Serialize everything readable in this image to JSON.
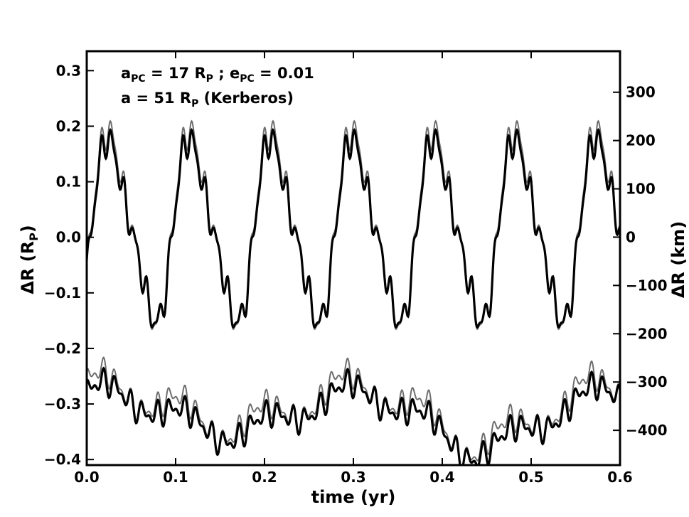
{
  "chart_data": {
    "type": "line",
    "xlabel": "time (yr)",
    "ylabel_left": "ΔR (R",
    "ylabel_left_sub": "P",
    "ylabel_right": "ΔR (km)",
    "xlim": [
      0.0,
      0.6
    ],
    "ylim_left": [
      -0.41,
      0.335
    ],
    "ylim_right": [
      -472,
      385
    ],
    "x_ticks": [
      0.0,
      0.1,
      0.2,
      0.3,
      0.4,
      0.5,
      0.6
    ],
    "x_tick_labels": [
      "0.0",
      "0.1",
      "0.2",
      "0.3",
      "0.4",
      "0.5",
      "0.6"
    ],
    "y_left_ticks": [
      0.3,
      0.2,
      0.1,
      0.0,
      -0.1,
      -0.2,
      -0.3,
      -0.4
    ],
    "y_left_tick_labels": [
      "0.3",
      "0.2",
      "0.1",
      "0.0",
      "−0.1",
      "−0.2",
      "−0.3",
      "−0.4"
    ],
    "y_right_ticks": [
      300,
      200,
      100,
      0,
      -100,
      -200,
      -300,
      -400
    ],
    "y_right_tick_labels": [
      "300",
      "200",
      "100",
      "0",
      "−100",
      "−200",
      "−300",
      "−400"
    ],
    "annotation_line1": {
      "a": "a",
      "a_sub": "PC",
      "a_rest": " = 17 R",
      "a_rsub": "P",
      "sep": " ; e",
      "e_sub": "PC",
      "e_rest": " = 0.01"
    },
    "annotation_line2": {
      "a": "a = 51 R",
      "a_sub": "P",
      "rest": "  (Kerberos)"
    },
    "colors": {
      "thick": "#000000",
      "thin": "#6e6e6e"
    },
    "series": [
      {
        "style": "thick black",
        "period_yr": 0.0915,
        "mean": 0.01,
        "amplitude": 0.185,
        "min": -0.185,
        "max": 0.2
      },
      {
        "style": "thin gray",
        "period_yr": 0.0915,
        "mean": 0.012,
        "amplitude": 0.19,
        "min": -0.18,
        "max": 0.21
      },
      {
        "style": "thick black",
        "mean": -0.315,
        "min": -0.39,
        "max": -0.24,
        "trend": "gradual drift with ~0.0915 yr modulation"
      },
      {
        "style": "thin gray",
        "mean": -0.305,
        "min": -0.37,
        "max": -0.205,
        "trend": "gradual drift with ~0.0915 yr modulation"
      }
    ]
  }
}
